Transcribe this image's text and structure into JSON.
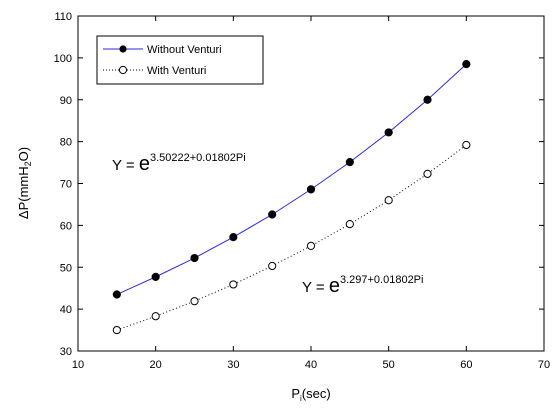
{
  "chart_data": {
    "type": "line",
    "xlabel": {
      "main": "P",
      "sub": "i",
      "suffix": "(sec)"
    },
    "ylabel": {
      "prefix": "ΔP(mmH",
      "sub": "2",
      "suffix": "O)"
    },
    "xlim": [
      10,
      70
    ],
    "ylim": [
      30,
      110
    ],
    "xticks": [
      10,
      20,
      30,
      40,
      50,
      60,
      70
    ],
    "yticks": [
      30,
      40,
      50,
      60,
      70,
      80,
      90,
      100,
      110
    ],
    "grid": false,
    "legend_position": "top-left",
    "series": [
      {
        "name": "Without Venturi",
        "marker": "filled-circle",
        "line_style": "solid",
        "line_color": "#2b2bd6",
        "x": [
          15,
          20,
          25,
          30,
          35,
          40,
          45,
          50,
          55,
          60
        ],
        "y": [
          43.5,
          47.7,
          52.2,
          57.2,
          62.6,
          68.6,
          75.1,
          82.2,
          90.0,
          98.5
        ]
      },
      {
        "name": "With Venturi",
        "marker": "open-circle",
        "line_style": "dotted",
        "line_color": "#000000",
        "x": [
          15,
          20,
          25,
          30,
          35,
          40,
          45,
          50,
          55,
          60
        ],
        "y": [
          35.0,
          38.3,
          41.9,
          45.9,
          50.3,
          55.1,
          60.3,
          66.0,
          72.3,
          79.2
        ]
      }
    ],
    "annotations": [
      {
        "prefix": "Y  =  ",
        "base": "e",
        "exponent": "3.50222+0.01802Pi"
      },
      {
        "prefix": "Y  =  ",
        "base": "e",
        "exponent": "3.297+0.01802Pi"
      }
    ]
  }
}
